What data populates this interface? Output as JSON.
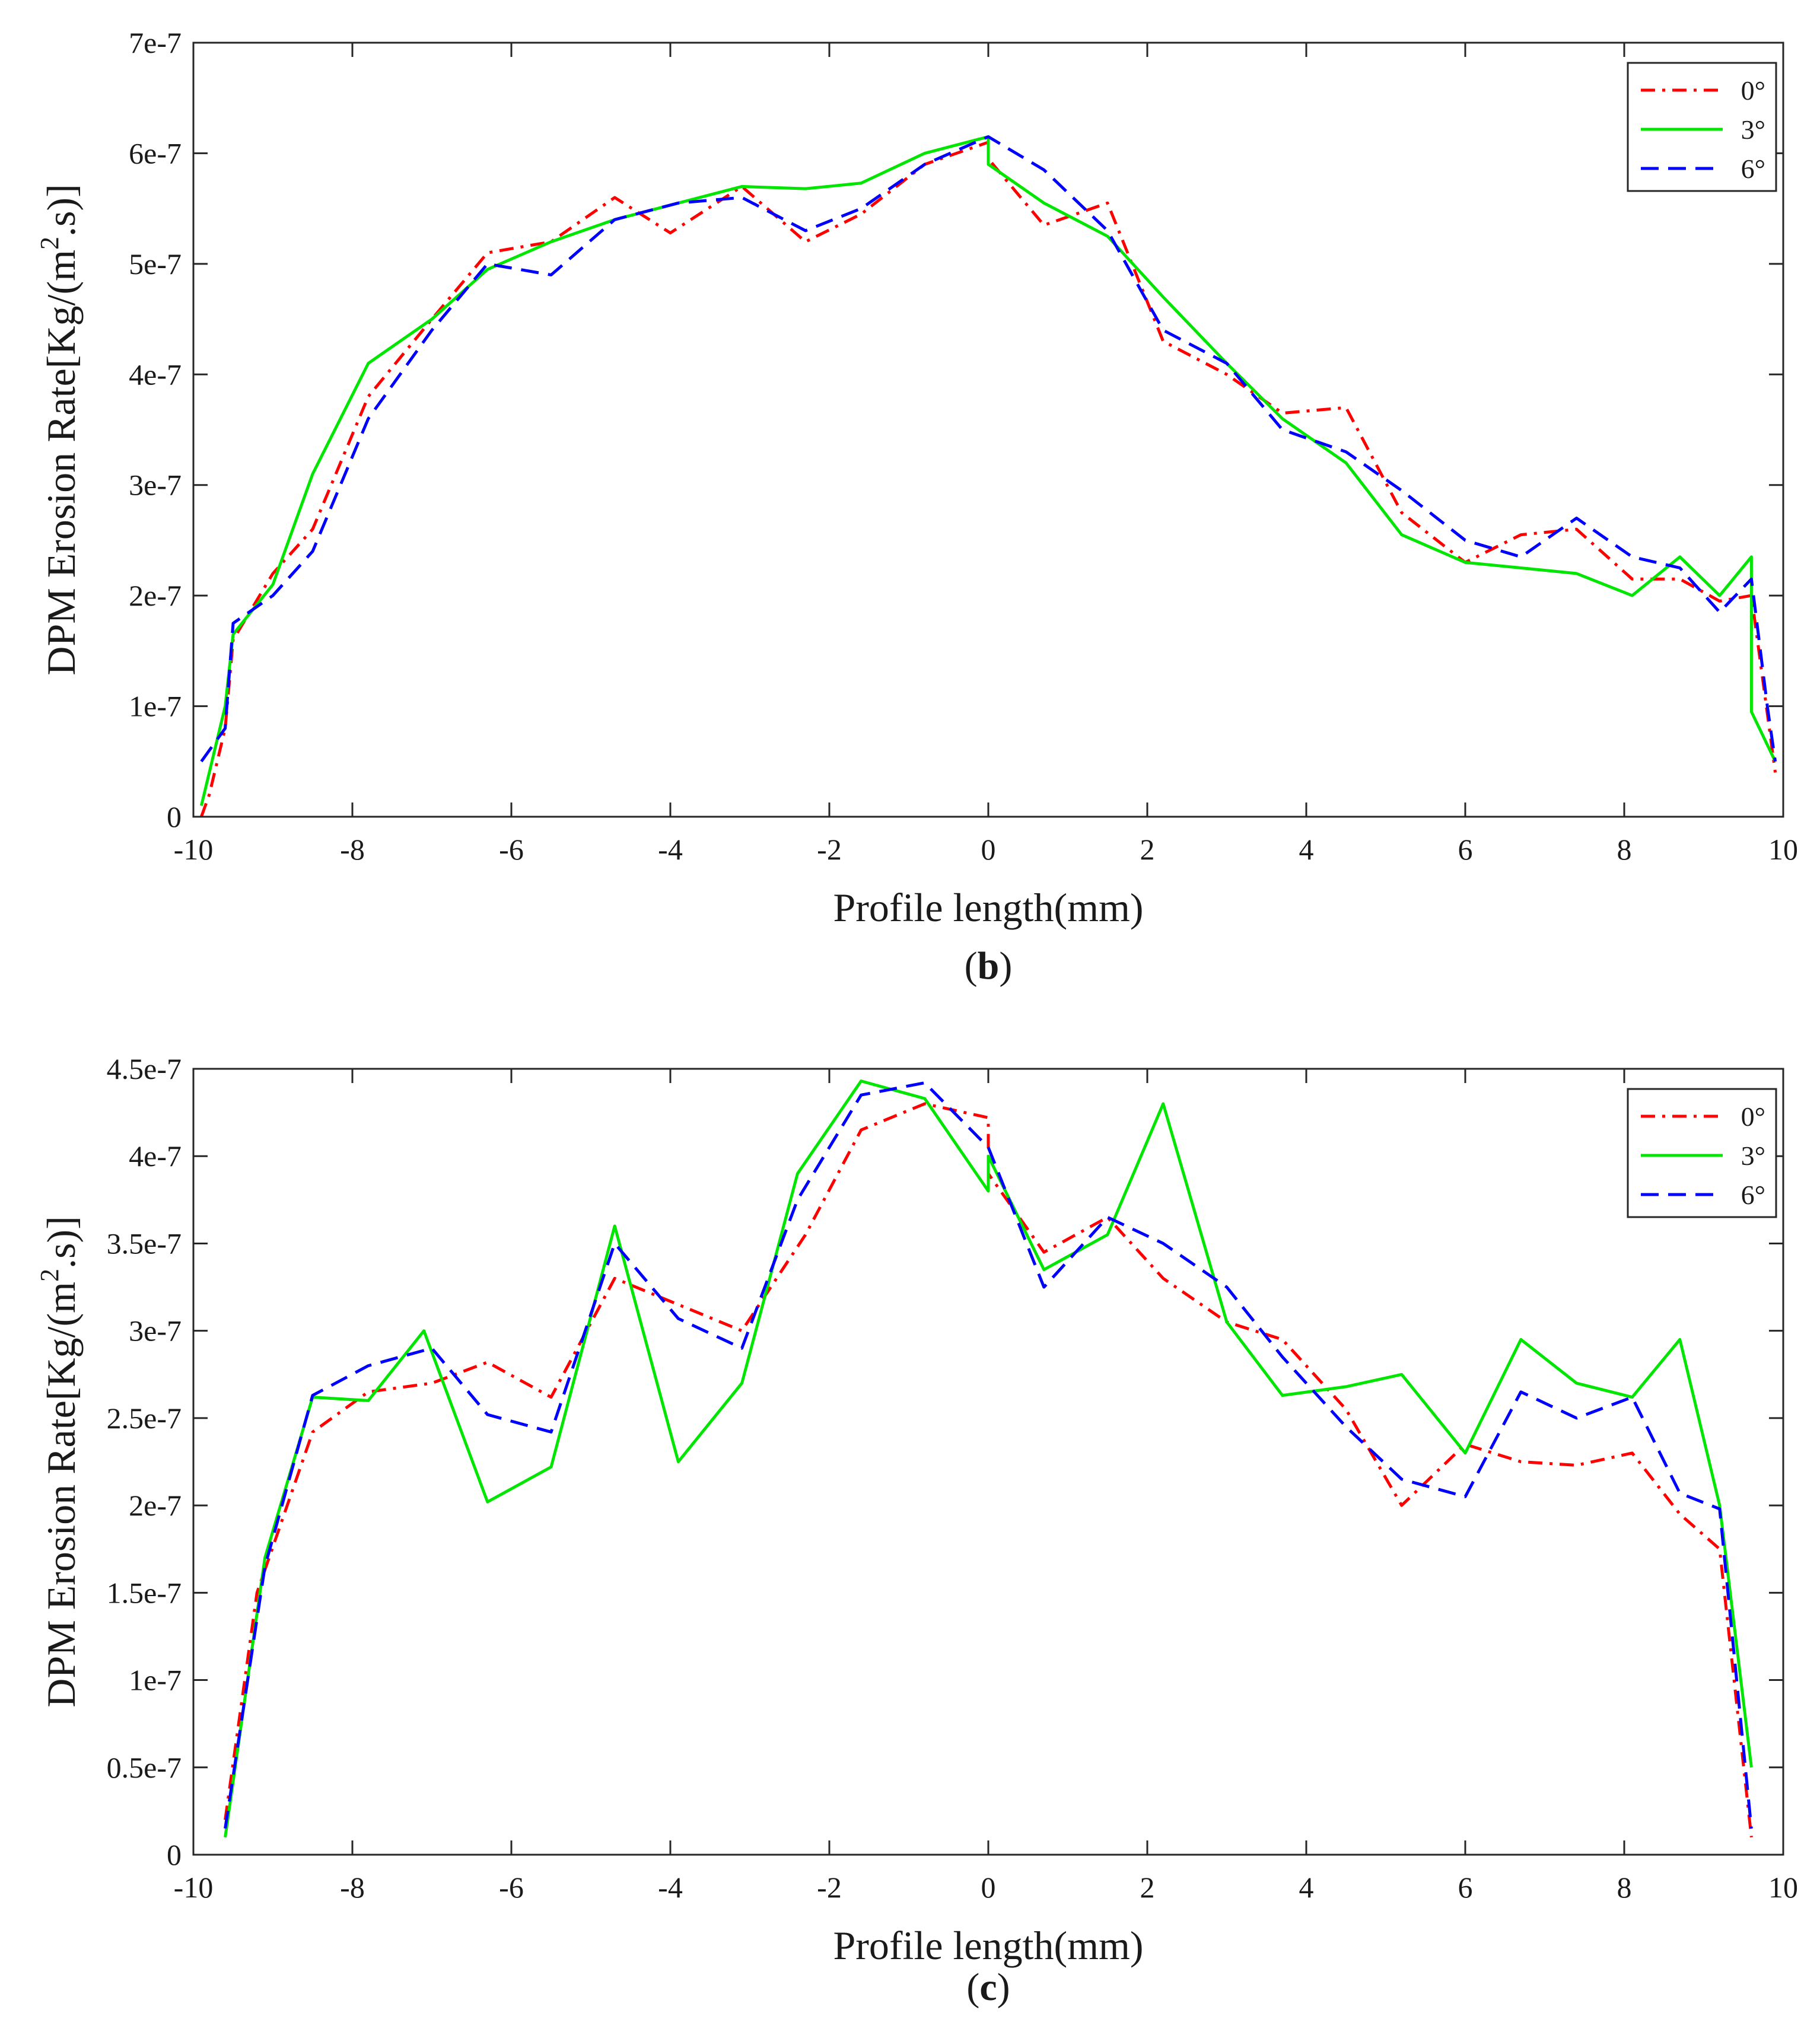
{
  "chart_data": [
    {
      "type": "line",
      "title": "",
      "caption": {
        "open": "(",
        "letter": "b",
        "close": ")"
      },
      "xlabel": "Profile length(mm)",
      "ylabel": "DPM Erosion Rate[Kg/(m",
      "ylabel_sup": "2",
      "ylabel_end": ".s)]",
      "xlim": [
        -10,
        10
      ],
      "ylim": [
        0,
        7e-07
      ],
      "xticks": [
        -10,
        -8,
        -6,
        -4,
        -2,
        0,
        2,
        4,
        6,
        8,
        10
      ],
      "xtick_labels": [
        "-10",
        "-8",
        "-6",
        "-4",
        "-2",
        "0",
        "2",
        "4",
        "6",
        "8",
        "10"
      ],
      "yticks": [
        0,
        1e-07,
        2e-07,
        3e-07,
        4e-07,
        5e-07,
        6e-07,
        7e-07
      ],
      "ytick_labels": [
        "0",
        "1e-7",
        "2e-7",
        "3e-7",
        "4e-7",
        "5e-7",
        "6e-7",
        "7e-7"
      ],
      "grid": false,
      "legend_position": "top-right",
      "series": [
        {
          "name": "0°",
          "color": "#ff0000",
          "dash": "dashdot",
          "x": [
            -9.9,
            -9.8,
            -9.6,
            -9.5,
            -9.0,
            -8.5,
            -7.8,
            -7.0,
            -6.3,
            -5.5,
            -4.7,
            -4.0,
            -3.1,
            -2.3,
            -1.6,
            -0.8,
            0.0,
            0.0,
            0.7,
            1.5,
            2.2,
            3.0,
            3.7,
            4.5,
            5.2,
            6.0,
            6.7,
            7.4,
            8.1,
            8.7,
            9.2,
            9.6,
            9.9
          ],
          "y": [
            0.0,
            2e-08,
            8e-08,
            1.6e-07,
            2.2e-07,
            2.6e-07,
            3.8e-07,
            4.5e-07,
            5.1e-07,
            5.2e-07,
            5.6e-07,
            5.28e-07,
            5.7e-07,
            5.2e-07,
            5.45e-07,
            5.9e-07,
            6.1e-07,
            5.95e-07,
            5.35e-07,
            5.55e-07,
            4.3e-07,
            4e-07,
            3.65e-07,
            3.7e-07,
            2.75e-07,
            2.3e-07,
            2.55e-07,
            2.6e-07,
            2.15e-07,
            2.15e-07,
            1.95e-07,
            2e-07,
            4e-08
          ]
        },
        {
          "name": "3°",
          "color": "#00e600",
          "dash": "solid",
          "x": [
            -9.9,
            -9.6,
            -9.5,
            -9.0,
            -8.5,
            -7.8,
            -7.0,
            -6.3,
            -5.5,
            -4.7,
            -3.9,
            -3.1,
            -2.3,
            -1.6,
            -0.8,
            0.0,
            0.0,
            0.7,
            1.5,
            2.2,
            3.0,
            3.7,
            4.5,
            5.2,
            6.0,
            6.7,
            7.4,
            8.1,
            8.7,
            9.2,
            9.6,
            9.6,
            9.9
          ],
          "y": [
            1e-08,
            1e-07,
            1.65e-07,
            2.1e-07,
            3.1e-07,
            4.1e-07,
            4.5e-07,
            4.95e-07,
            5.2e-07,
            5.4e-07,
            5.55e-07,
            5.7e-07,
            5.68e-07,
            5.73e-07,
            6e-07,
            6.15e-07,
            5.9e-07,
            5.55e-07,
            5.25e-07,
            4.7e-07,
            4.1e-07,
            3.6e-07,
            3.2e-07,
            2.55e-07,
            2.3e-07,
            2.25e-07,
            2.2e-07,
            2e-07,
            2.35e-07,
            2e-07,
            2.35e-07,
            9.5e-08,
            5e-08
          ]
        },
        {
          "name": "6°",
          "color": "#0000ff",
          "dash": "dashed",
          "x": [
            -9.9,
            -9.6,
            -9.5,
            -9.0,
            -8.5,
            -7.8,
            -7.0,
            -6.3,
            -5.5,
            -4.7,
            -3.9,
            -3.1,
            -2.3,
            -1.6,
            -0.8,
            0.0,
            0.7,
            1.5,
            2.2,
            3.0,
            3.7,
            4.5,
            5.2,
            6.0,
            6.7,
            7.4,
            8.1,
            8.7,
            9.2,
            9.6,
            9.8,
            9.9
          ],
          "y": [
            5e-08,
            8e-08,
            1.75e-07,
            2e-07,
            2.4e-07,
            3.6e-07,
            4.4e-07,
            5e-07,
            4.9e-07,
            5.4e-07,
            5.55e-07,
            5.6e-07,
            5.3e-07,
            5.5e-07,
            5.9e-07,
            6.15e-07,
            5.85e-07,
            5.3e-07,
            4.4e-07,
            4.1e-07,
            3.5e-07,
            3.3e-07,
            2.95e-07,
            2.5e-07,
            2.35e-07,
            2.7e-07,
            2.35e-07,
            2.25e-07,
            1.85e-07,
            2.15e-07,
            1e-07,
            5e-08
          ]
        }
      ]
    },
    {
      "type": "line",
      "title": "",
      "caption": {
        "open": "(",
        "letter": "c",
        "close": ")"
      },
      "xlabel": "Profile length(mm)",
      "ylabel": "DPM Erosion Rate[Kg/(m",
      "ylabel_sup": "2",
      "ylabel_end": ".s)]",
      "xlim": [
        -10,
        10
      ],
      "ylim": [
        0,
        4.5e-07
      ],
      "xticks": [
        -10,
        -8,
        -6,
        -4,
        -2,
        0,
        2,
        4,
        6,
        8,
        10
      ],
      "xtick_labels": [
        "-10",
        "-8",
        "-6",
        "-4",
        "-2",
        "0",
        "2",
        "4",
        "6",
        "8",
        "10"
      ],
      "yticks": [
        0,
        5e-08,
        1e-07,
        1.5e-07,
        2e-07,
        2.5e-07,
        3e-07,
        3.5e-07,
        4e-07,
        4.5e-07
      ],
      "ytick_labels": [
        "0",
        "0.5e-7",
        "1e-7",
        "1.5e-7",
        "2e-7",
        "2.5e-7",
        "3e-7",
        "3.5e-7",
        "4e-7",
        "4.5e-7"
      ],
      "grid": false,
      "legend_position": "top-right",
      "series": [
        {
          "name": "0°",
          "color": "#ff0000",
          "dash": "dashdot",
          "x": [
            -9.6,
            -9.2,
            -8.5,
            -7.8,
            -7.0,
            -6.3,
            -5.5,
            -4.7,
            -3.9,
            -3.1,
            -2.3,
            -1.6,
            -0.8,
            0.0,
            0.0,
            0.7,
            1.5,
            2.2,
            3.0,
            3.7,
            4.5,
            5.2,
            6.0,
            6.7,
            7.4,
            8.1,
            8.7,
            9.2,
            9.6
          ],
          "y": [
            2e-08,
            1.5e-07,
            2.42e-07,
            2.65e-07,
            2.7e-07,
            2.82e-07,
            2.62e-07,
            3.3e-07,
            3.15e-07,
            3e-07,
            3.55e-07,
            4.15e-07,
            4.3e-07,
            4.22e-07,
            3.9e-07,
            3.45e-07,
            3.65e-07,
            3.3e-07,
            3.05e-07,
            2.95e-07,
            2.55e-07,
            2e-07,
            2.35e-07,
            2.25e-07,
            2.23e-07,
            2.3e-07,
            1.95e-07,
            1.75e-07,
            1e-08
          ]
        },
        {
          "name": "3°",
          "color": "#00e600",
          "dash": "solid",
          "x": [
            -9.6,
            -9.1,
            -8.5,
            -7.8,
            -7.1,
            -6.3,
            -5.5,
            -4.7,
            -3.9,
            -3.1,
            -2.4,
            -1.6,
            -0.8,
            0.0,
            0.0,
            0.7,
            1.5,
            2.2,
            3.0,
            3.7,
            4.5,
            5.2,
            6.0,
            6.7,
            7.4,
            8.1,
            8.7,
            9.2,
            9.6
          ],
          "y": [
            1e-08,
            1.7e-07,
            2.62e-07,
            2.6e-07,
            3e-07,
            2.02e-07,
            2.22e-07,
            3.6e-07,
            2.25e-07,
            2.7e-07,
            3.9e-07,
            4.43e-07,
            4.33e-07,
            3.8e-07,
            4e-07,
            3.35e-07,
            3.55e-07,
            4.3e-07,
            3.05e-07,
            2.63e-07,
            2.68e-07,
            2.75e-07,
            2.3e-07,
            2.95e-07,
            2.7e-07,
            2.62e-07,
            2.95e-07,
            2e-07,
            5e-08
          ]
        },
        {
          "name": "6°",
          "color": "#0000ff",
          "dash": "dashed",
          "x": [
            -9.6,
            -9.1,
            -8.5,
            -7.8,
            -7.0,
            -6.3,
            -5.5,
            -4.7,
            -3.9,
            -3.1,
            -2.4,
            -1.6,
            -0.8,
            0.0,
            0.7,
            1.5,
            2.2,
            3.0,
            3.7,
            4.5,
            5.2,
            6.0,
            6.7,
            7.4,
            8.1,
            8.7,
            9.2,
            9.6
          ],
          "y": [
            1.5e-08,
            1.65e-07,
            2.63e-07,
            2.8e-07,
            2.9e-07,
            2.52e-07,
            2.42e-07,
            3.5e-07,
            3.07e-07,
            2.9e-07,
            3.75e-07,
            4.35e-07,
            4.42e-07,
            4.05e-07,
            3.25e-07,
            3.65e-07,
            3.5e-07,
            3.25e-07,
            2.85e-07,
            2.45e-07,
            2.15e-07,
            2.05e-07,
            2.65e-07,
            2.5e-07,
            2.62e-07,
            2.07e-07,
            1.98e-07,
            1.5e-08
          ]
        }
      ]
    }
  ]
}
